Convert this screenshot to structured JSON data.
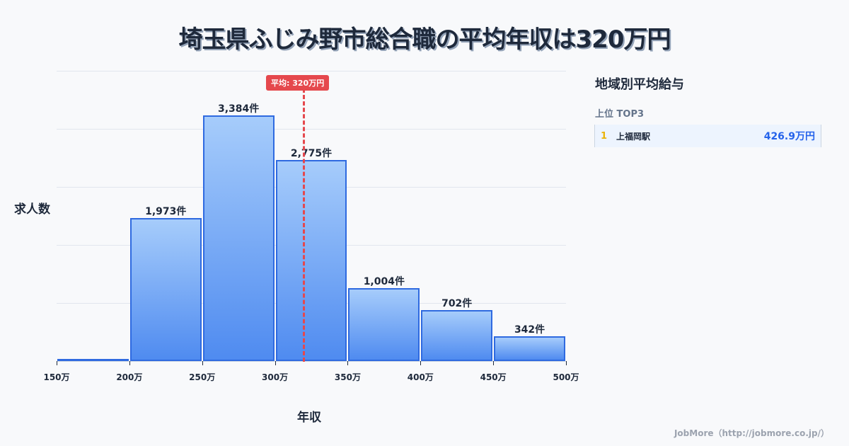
{
  "title": "埼玉県ふじみ野市総合職の平均年収は320万円",
  "chart_data": {
    "type": "bar",
    "title": "埼玉県ふじみ野市総合職の平均年収は320万円",
    "xlabel": "年収",
    "ylabel": "求人数",
    "categories": [
      "150万-200万",
      "200万-250万",
      "250万-300万",
      "300万-350万",
      "350万-400万",
      "400万-450万",
      "450万-500万"
    ],
    "x_ticks": [
      "150万",
      "200万",
      "250万",
      "300万",
      "350万",
      "400万",
      "450万",
      "500万"
    ],
    "values": [
      10,
      1973,
      3384,
      2775,
      1004,
      702,
      342
    ],
    "value_labels": [
      "",
      "1,973件",
      "3,384件",
      "2,775件",
      "1,004件",
      "702件",
      "342件"
    ],
    "ylim": [
      0,
      4000
    ],
    "grid": true,
    "annotation": {
      "label": "平均: 320万円",
      "x": 320
    }
  },
  "sidebar": {
    "title": "地域別平均給与",
    "subtitle": "上位 TOP3",
    "ranks": [
      {
        "rank": "1",
        "name": "上福岡駅",
        "value": "426.9万円"
      }
    ]
  },
  "footer": "JobMore（http://jobmore.co.jp/）"
}
